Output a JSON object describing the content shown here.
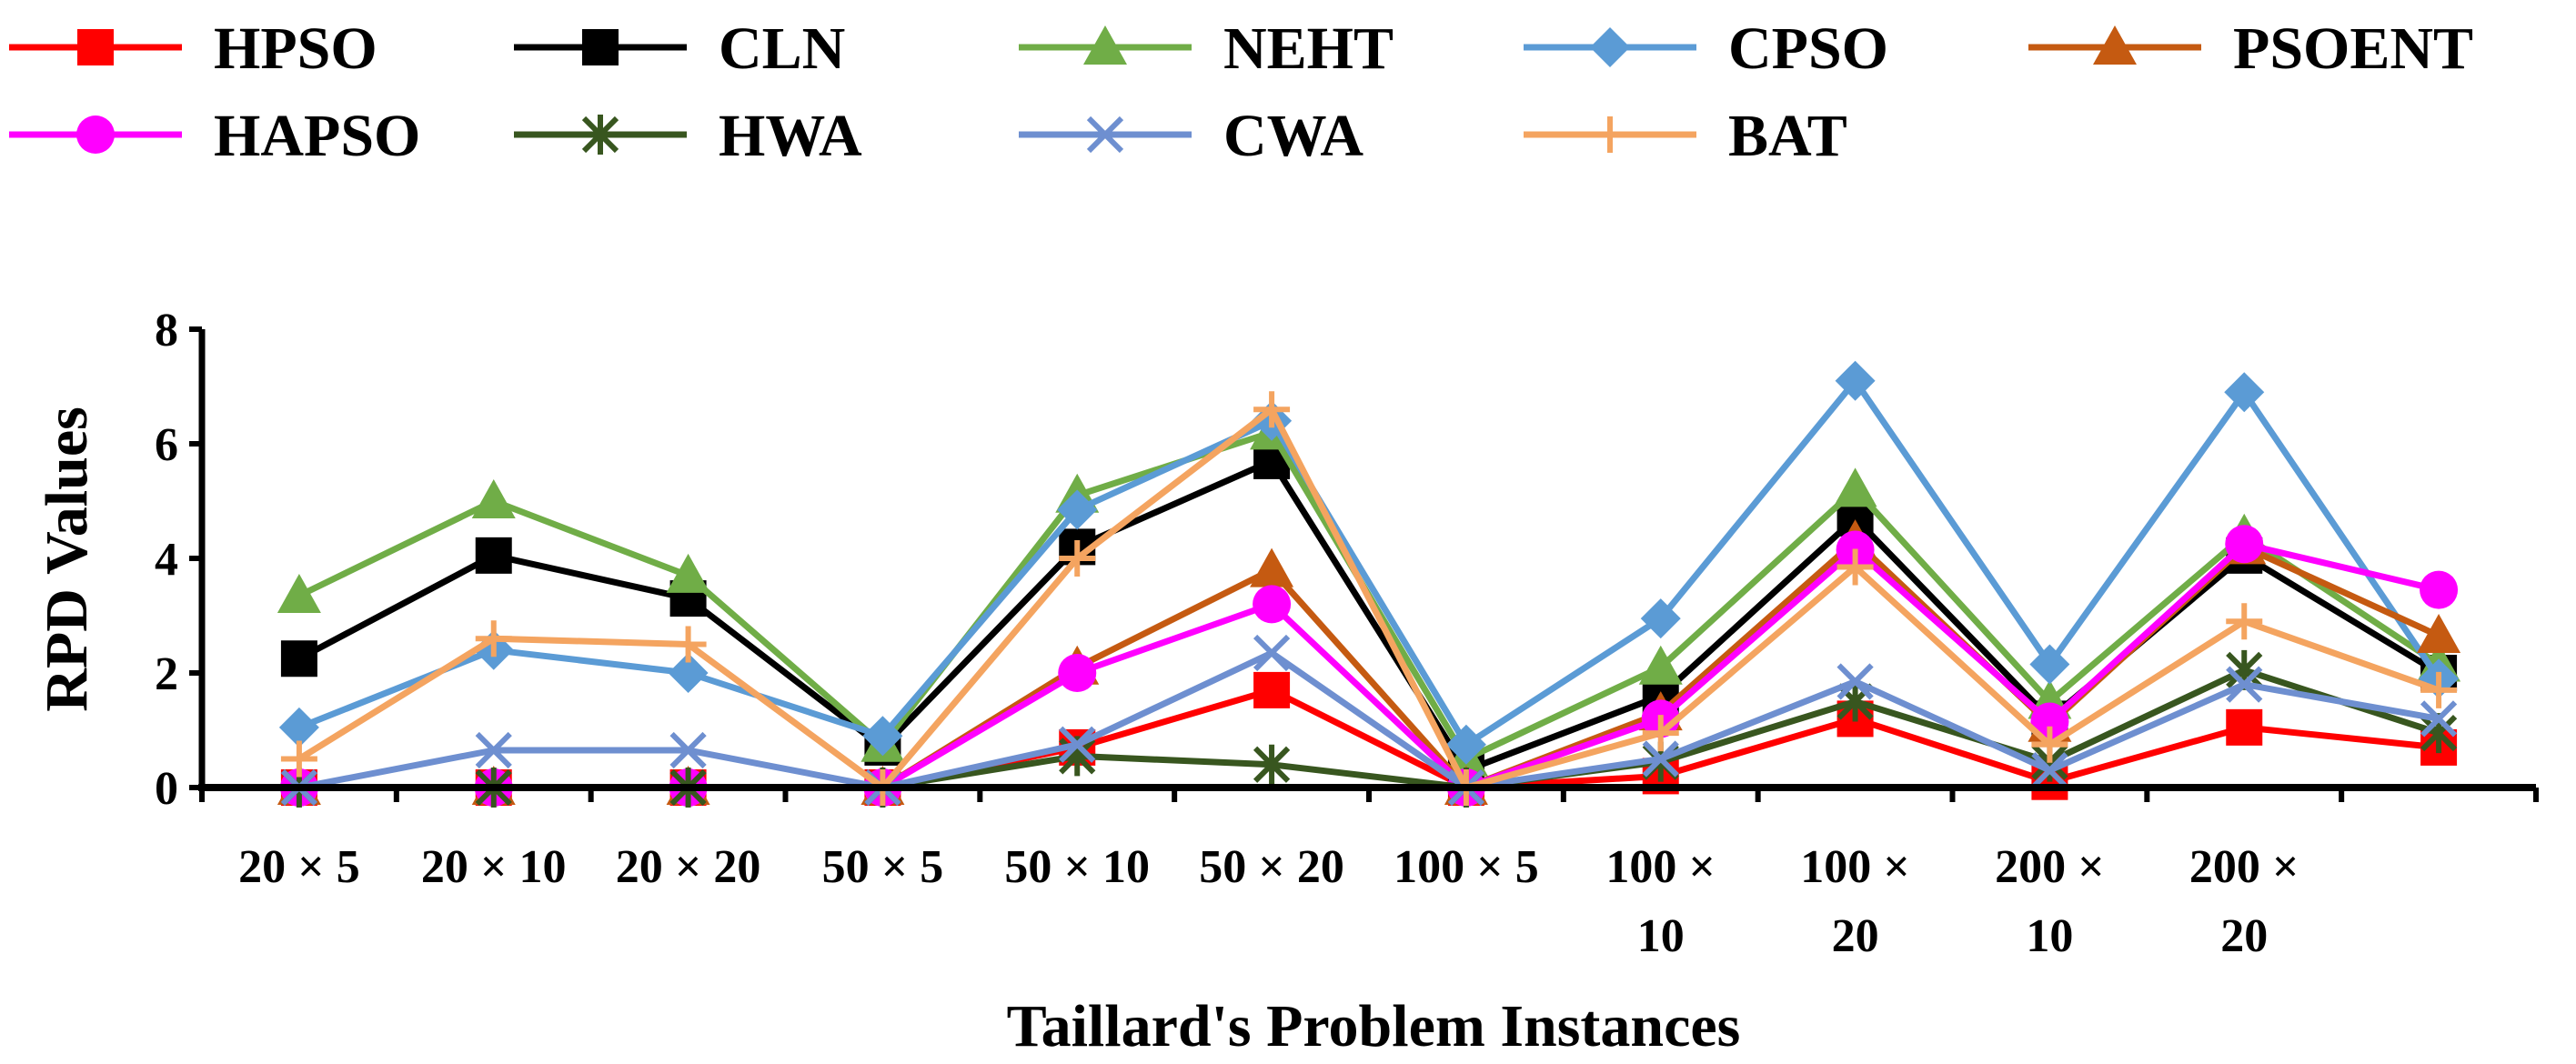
{
  "chart_data": {
    "type": "line",
    "title": "",
    "xlabel": "Taillard's Problem Instances",
    "ylabel": "RPD Values",
    "ylim": [
      0,
      8
    ],
    "yticks": [
      "0",
      "2",
      "4",
      "6",
      "8"
    ],
    "categories": [
      [
        "20 × 5"
      ],
      [
        "20 × 10"
      ],
      [
        "20 × 20"
      ],
      [
        "50 × 5"
      ],
      [
        "50 × 10"
      ],
      [
        "50 × 20"
      ],
      [
        "100 × 5"
      ],
      [
        "100 ×",
        "10"
      ],
      [
        "100 ×",
        "20"
      ],
      [
        "200 ×",
        "10"
      ],
      [
        "200 ×",
        "20"
      ],
      []
    ],
    "legend_position": "top",
    "series": [
      {
        "name": "HPSO",
        "color": "#ff0000",
        "marker": "square",
        "values": [
          0,
          0,
          0,
          0,
          0.7,
          1.7,
          0,
          0.2,
          1.2,
          0.1,
          1.05,
          0.7
        ]
      },
      {
        "name": "CLN",
        "color": "#000000",
        "marker": "square",
        "values": [
          2.25,
          4.05,
          3.3,
          0.7,
          4.2,
          5.7,
          0.3,
          1.6,
          4.7,
          1.2,
          4.05,
          2.0
        ]
      },
      {
        "name": "NEHT",
        "color": "#70ad47",
        "marker": "triangle",
        "values": [
          3.35,
          5.0,
          3.7,
          0.75,
          5.1,
          6.2,
          0.5,
          2.1,
          5.2,
          1.5,
          4.4,
          2.15
        ]
      },
      {
        "name": "CPSO",
        "color": "#5b9bd5",
        "marker": "diamond",
        "values": [
          1.05,
          2.4,
          2.0,
          0.9,
          4.85,
          6.4,
          0.75,
          2.95,
          7.1,
          2.15,
          6.9,
          1.9
        ]
      },
      {
        "name": "PSOENT",
        "color": "#c55a11",
        "marker": "triangle",
        "values": [
          0,
          0,
          0,
          0,
          2.1,
          3.8,
          0,
          1.3,
          4.3,
          1.1,
          4.2,
          2.65
        ]
      },
      {
        "name": "HAPSO",
        "color": "#ff00ff",
        "marker": "circle",
        "values": [
          0,
          0,
          0,
          0,
          2.0,
          3.2,
          0,
          1.2,
          4.15,
          1.15,
          4.25,
          3.45
        ]
      },
      {
        "name": "HWA",
        "color": "#38561f",
        "marker": "star",
        "values": [
          0,
          0,
          0,
          0,
          0.55,
          0.4,
          0,
          0.45,
          1.5,
          0.45,
          2.05,
          0.95
        ]
      },
      {
        "name": "CWA",
        "color": "#6e8fd0",
        "marker": "x",
        "values": [
          0,
          0.65,
          0.65,
          0,
          0.75,
          2.35,
          0,
          0.5,
          1.85,
          0.3,
          1.8,
          1.2
        ]
      },
      {
        "name": "BAT",
        "color": "#f4a460",
        "marker": "plus",
        "values": [
          0.5,
          2.6,
          2.5,
          0,
          4.0,
          6.6,
          0,
          0.95,
          3.85,
          0.75,
          2.9,
          1.7
        ]
      }
    ]
  }
}
